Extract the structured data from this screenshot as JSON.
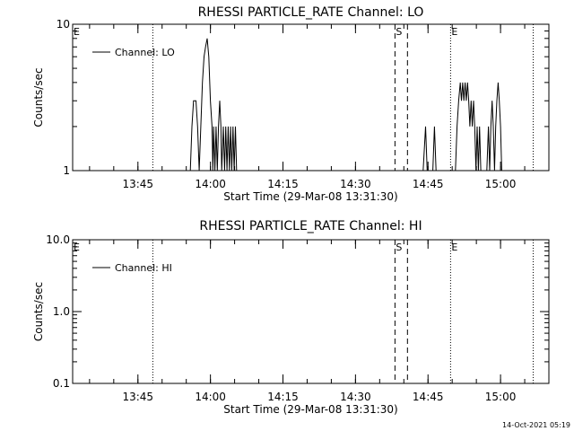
{
  "footer": {
    "timestamp": "14-Oct-2021 05:19"
  },
  "chart_data": [
    {
      "type": "line",
      "title": "RHESSI PARTICLE_RATE Channel: LO",
      "xlabel": "Start Time (29-Mar-08 13:31:30)",
      "ylabel": "Counts/sec",
      "yscale": "log",
      "ylim": [
        1,
        10
      ],
      "xlim": [
        "13:31:30",
        "15:10:00"
      ],
      "ytick_labels": [
        "1",
        "10"
      ],
      "xtick_labels": [
        "13:45",
        "14:00",
        "14:15",
        "14:30",
        "14:45",
        "15:00"
      ],
      "legend": {
        "position": "top-left",
        "entries": [
          "Channel: LO"
        ]
      },
      "markers": [
        {
          "label": "E",
          "time": "13:31:30",
          "style": "none"
        },
        {
          "label": "",
          "time": "13:48:05",
          "style": "dotted"
        },
        {
          "label": "S",
          "time": "14:38:10",
          "style": "dashed"
        },
        {
          "label": "",
          "time": "14:40:45",
          "style": "dashed"
        },
        {
          "label": "E",
          "time": "14:49:40",
          "style": "dotted"
        },
        {
          "label": "",
          "time": "15:06:45",
          "style": "dotted"
        }
      ],
      "series": [
        {
          "name": "Channel: LO",
          "points": [
            [
              "13:55:50",
              1
            ],
            [
              "13:56:10",
              2
            ],
            [
              "13:56:30",
              3
            ],
            [
              "13:57:00",
              3
            ],
            [
              "13:57:20",
              2
            ],
            [
              "13:57:40",
              1
            ],
            [
              "13:58:00",
              2
            ],
            [
              "13:58:20",
              4
            ],
            [
              "13:58:40",
              6
            ],
            [
              "13:59:00",
              7
            ],
            [
              "13:59:20",
              8
            ],
            [
              "13:59:40",
              6
            ],
            [
              "14:00:00",
              3
            ],
            [
              "14:00:20",
              2
            ],
            [
              "14:00:30",
              1
            ],
            [
              "14:00:40",
              2
            ],
            [
              "14:00:55",
              1
            ],
            [
              "14:01:10",
              2
            ],
            [
              "14:01:25",
              1
            ],
            [
              "14:01:40",
              2
            ],
            [
              "14:01:55",
              3
            ],
            [
              "14:02:10",
              2
            ],
            [
              "14:02:20",
              1
            ],
            [
              "14:02:40",
              2
            ],
            [
              "14:02:55",
              1
            ],
            [
              "14:03:10",
              2
            ],
            [
              "14:03:25",
              1
            ],
            [
              "14:03:40",
              2
            ],
            [
              "14:03:55",
              1
            ],
            [
              "14:04:10",
              2
            ],
            [
              "14:04:25",
              1
            ],
            [
              "14:04:40",
              2
            ],
            [
              "14:04:55",
              1
            ],
            [
              "14:05:10",
              2
            ],
            [
              "14:05:25",
              1
            ],
            [
              "14:44:00",
              1
            ],
            [
              "14:44:30",
              2
            ],
            [
              "14:44:50",
              1
            ],
            [
              "14:46:00",
              1
            ],
            [
              "14:46:20",
              2
            ],
            [
              "14:46:40",
              1
            ],
            [
              "14:50:40",
              1
            ],
            [
              "14:51:00",
              2
            ],
            [
              "14:51:20",
              3
            ],
            [
              "14:51:40",
              4
            ],
            [
              "14:51:55",
              3
            ],
            [
              "14:52:10",
              4
            ],
            [
              "14:52:25",
              3
            ],
            [
              "14:52:40",
              4
            ],
            [
              "14:52:55",
              3
            ],
            [
              "14:53:10",
              4
            ],
            [
              "14:53:25",
              3
            ],
            [
              "14:53:40",
              2
            ],
            [
              "14:53:55",
              3
            ],
            [
              "14:54:10",
              2
            ],
            [
              "14:54:25",
              3
            ],
            [
              "14:54:40",
              2
            ],
            [
              "14:54:55",
              1
            ],
            [
              "14:55:10",
              2
            ],
            [
              "14:55:25",
              1
            ],
            [
              "14:55:40",
              2
            ],
            [
              "14:55:55",
              1
            ],
            [
              "14:57:10",
              1
            ],
            [
              "14:57:30",
              2
            ],
            [
              "14:57:45",
              1
            ],
            [
              "14:58:00",
              2
            ],
            [
              "14:58:15",
              3
            ],
            [
              "14:58:30",
              2
            ],
            [
              "14:58:45",
              1
            ],
            [
              "14:59:00",
              2
            ],
            [
              "14:59:15",
              3
            ],
            [
              "14:59:30",
              4
            ],
            [
              "14:59:45",
              3
            ],
            [
              "15:00:00",
              2
            ],
            [
              "15:00:15",
              1
            ]
          ]
        }
      ]
    },
    {
      "type": "line",
      "title": "RHESSI PARTICLE_RATE Channel: HI",
      "xlabel": "Start Time (29-Mar-08 13:31:30)",
      "ylabel": "Counts/sec",
      "yscale": "log",
      "ylim": [
        0.1,
        10
      ],
      "xlim": [
        "13:31:30",
        "15:10:00"
      ],
      "ytick_labels": [
        "0.1",
        "1.0",
        "10.0"
      ],
      "xtick_labels": [
        "13:45",
        "14:00",
        "14:15",
        "14:30",
        "14:45",
        "15:00"
      ],
      "legend": {
        "position": "top-left",
        "entries": [
          "Channel: HI"
        ]
      },
      "markers": [
        {
          "label": "E",
          "time": "13:31:30",
          "style": "none"
        },
        {
          "label": "",
          "time": "13:48:05",
          "style": "dotted"
        },
        {
          "label": "S",
          "time": "14:38:10",
          "style": "dashed"
        },
        {
          "label": "",
          "time": "14:40:45",
          "style": "dashed"
        },
        {
          "label": "E",
          "time": "14:49:40",
          "style": "dotted"
        },
        {
          "label": "",
          "time": "15:06:45",
          "style": "dotted"
        }
      ],
      "series": [
        {
          "name": "Channel: HI",
          "points": []
        }
      ]
    }
  ]
}
